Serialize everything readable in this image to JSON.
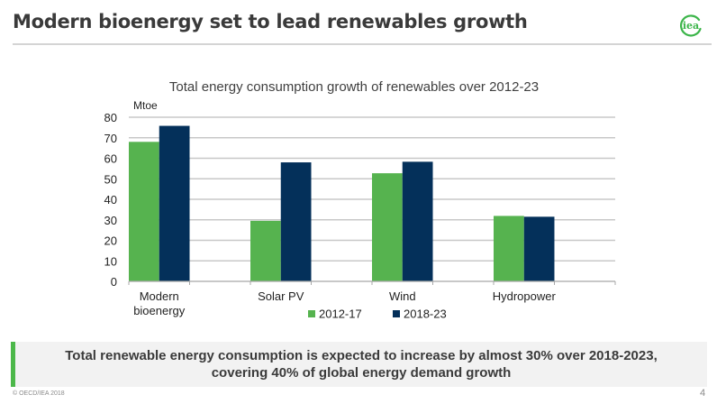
{
  "header": {
    "title": "Modern bioenergy set to lead renewables growth",
    "logo_text": "iea",
    "logo_color": "#3cb54a"
  },
  "chart_data": {
    "type": "bar",
    "title": "Total energy consumption growth of renewables over 2012-23",
    "ylabel": "Mtoe",
    "xlabel": "",
    "ylim": [
      0,
      80
    ],
    "yticks": [
      0,
      10,
      20,
      30,
      40,
      50,
      60,
      70,
      80
    ],
    "grid": true,
    "legend_position": "bottom",
    "categories": [
      [
        "Modern",
        "bioenergy"
      ],
      [
        "Solar PV"
      ],
      [
        "Wind"
      ],
      [
        "Hydropower"
      ]
    ],
    "series": [
      {
        "name": "2012-17",
        "color": "#56b34f",
        "values": [
          68,
          29.5,
          52.7,
          31.9
        ]
      },
      {
        "name": "2018-23",
        "color": "#04305a",
        "values": [
          75.8,
          58,
          58.3,
          31.5
        ]
      }
    ]
  },
  "callout": {
    "line1": "Total renewable energy consumption is expected to increase by almost 30% over 2018-2023,",
    "line2": "covering 40% of global energy demand growth",
    "accent_color": "#4cb84a"
  },
  "footer": {
    "copyright": "© OECD/IEA 2018",
    "page_number": "4"
  }
}
